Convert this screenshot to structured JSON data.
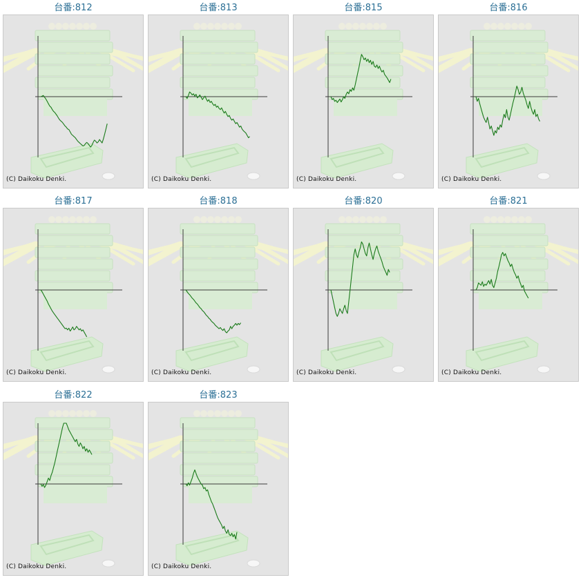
{
  "copyright": "(C) Daikoku Denki.",
  "colors": {
    "title": "#2b6f95",
    "line": "#1a7a1a",
    "axis": "#333333",
    "panel": "#e4e4e4"
  },
  "chart_data": [
    {
      "type": "line",
      "title": "台番:812",
      "y": [
        0,
        1,
        2,
        -1,
        -4,
        -8,
        -12,
        -16,
        -18,
        -22,
        -25,
        -27,
        -30,
        -33,
        -37,
        -40,
        -42,
        -44,
        -47,
        -50,
        -52,
        -55,
        -56,
        -60,
        -64,
        -66,
        -68,
        -70,
        -73,
        -76,
        -78,
        -80,
        -82,
        -84,
        -83,
        -80,
        -78,
        -80,
        -83,
        -86,
        -83,
        -78,
        -74,
        -76,
        -79,
        -77,
        -73,
        -76,
        -79,
        -72,
        -64,
        -55,
        -46
      ]
    },
    {
      "type": "line",
      "title": "台番:813",
      "y": [
        0,
        -3,
        2,
        8,
        6,
        3,
        5,
        1,
        4,
        -2,
        0,
        3,
        -1,
        -5,
        -2,
        1,
        -4,
        -8,
        -5,
        -10,
        -8,
        -12,
        -15,
        -13,
        -18,
        -16,
        -20,
        -22,
        -19,
        -24,
        -28,
        -25,
        -30,
        -34,
        -32,
        -37,
        -40,
        -38,
        -42,
        -46,
        -44,
        -48,
        -52,
        -50,
        -55,
        -58,
        -60,
        -62,
        -66,
        -70,
        -68
      ]
    },
    {
      "type": "line",
      "title": "台番:815",
      "y": [
        0,
        -5,
        -3,
        -8,
        -6,
        -10,
        -7,
        -4,
        -9,
        -5,
        0,
        -3,
        4,
        8,
        5,
        12,
        9,
        15,
        11,
        20,
        30,
        40,
        50,
        62,
        72,
        68,
        63,
        66,
        60,
        64,
        58,
        62,
        55,
        60,
        52,
        50,
        54,
        48,
        52,
        46,
        42,
        45,
        38,
        35,
        32,
        28,
        24,
        30
      ]
    },
    {
      "type": "line",
      "title": "台番:816",
      "y": [
        0,
        -8,
        -3,
        -12,
        -20,
        -28,
        -35,
        -40,
        -44,
        -35,
        -45,
        -55,
        -50,
        -58,
        -66,
        -58,
        -62,
        -52,
        -56,
        -48,
        -52,
        -40,
        -30,
        -36,
        -22,
        -35,
        -40,
        -30,
        -20,
        -10,
        -2,
        8,
        18,
        12,
        4,
        8,
        16,
        6,
        0,
        -6,
        -14,
        -20,
        -8,
        -18,
        -25,
        -30,
        -22,
        -34,
        -30,
        -38,
        -42
      ]
    },
    {
      "type": "line",
      "title": "台番:817",
      "y": [
        0,
        -3,
        -7,
        -11,
        -15,
        -19,
        -24,
        -28,
        -32,
        -36,
        -39,
        -42,
        -45,
        -48,
        -51,
        -54,
        -57,
        -60,
        -63,
        -66,
        -65,
        -68,
        -65,
        -70,
        -67,
        -63,
        -68,
        -66,
        -62,
        -65,
        -68,
        -66,
        -70,
        -68,
        -72,
        -76,
        -80
      ]
    },
    {
      "type": "line",
      "title": "台番:818",
      "y": [
        0,
        -3,
        -6,
        -8,
        -11,
        -14,
        -16,
        -19,
        -22,
        -24,
        -27,
        -30,
        -32,
        -35,
        -37,
        -40,
        -43,
        -45,
        -48,
        -50,
        -53,
        -55,
        -57,
        -60,
        -62,
        -64,
        -66,
        -64,
        -67,
        -69,
        -66,
        -71,
        -73,
        -70,
        -68,
        -62,
        -66,
        -62,
        -60,
        -57,
        -60,
        -57,
        -59,
        -56
      ]
    },
    {
      "type": "line",
      "title": "台番:820",
      "y": [
        0,
        -10,
        -20,
        -30,
        -40,
        -45,
        -40,
        -32,
        -36,
        -40,
        -32,
        -26,
        -35,
        -40,
        -20,
        0,
        20,
        40,
        60,
        70,
        60,
        55,
        65,
        72,
        82,
        78,
        70,
        62,
        58,
        72,
        80,
        70,
        60,
        52,
        62,
        70,
        75,
        66,
        60,
        54,
        48,
        40,
        35,
        30,
        25,
        35,
        30
      ]
    },
    {
      "type": "line",
      "title": "台番:821",
      "y": [
        0,
        4,
        12,
        10,
        8,
        14,
        6,
        10,
        8,
        12,
        16,
        10,
        18,
        8,
        4,
        12,
        20,
        32,
        40,
        50,
        60,
        64,
        58,
        62,
        56,
        50,
        46,
        40,
        44,
        36,
        30,
        26,
        20,
        24,
        16,
        10,
        4,
        8,
        -2,
        -6,
        -10,
        -14
      ]
    },
    {
      "type": "line",
      "title": "台番:822",
      "y": [
        0,
        -4,
        -1,
        -6,
        -2,
        4,
        10,
        6,
        14,
        20,
        28,
        36,
        46,
        56,
        66,
        76,
        86,
        96,
        104,
        108,
        104,
        98,
        92,
        88,
        84,
        80,
        76,
        72,
        76,
        68,
        64,
        70,
        66,
        60,
        64,
        56,
        60,
        54,
        58,
        54,
        50
      ]
    },
    {
      "type": "line",
      "title": "台番:823",
      "y": [
        0,
        -3,
        2,
        -2,
        4,
        10,
        18,
        24,
        18,
        12,
        8,
        4,
        0,
        -2,
        -8,
        -6,
        -12,
        -10,
        -18,
        -24,
        -30,
        -34,
        -40,
        -46,
        -52,
        -58,
        -62,
        -66,
        -70,
        -76,
        -72,
        -80,
        -84,
        -78,
        -86,
        -88,
        -84,
        -90,
        -86,
        -94,
        -82
      ]
    }
  ]
}
